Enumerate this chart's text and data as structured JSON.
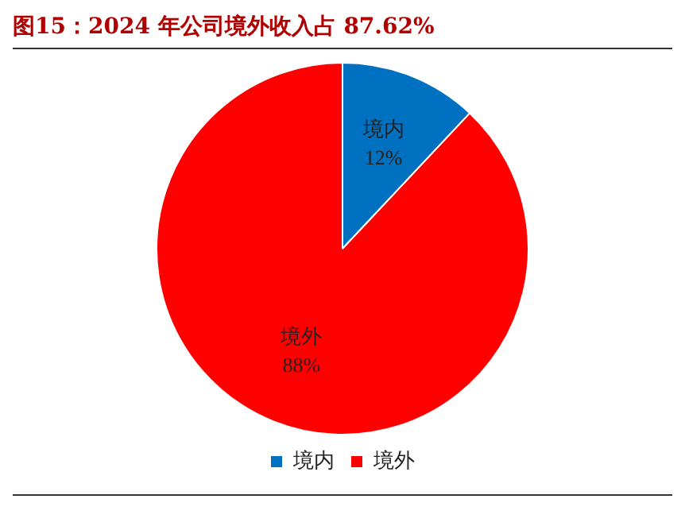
{
  "chart_data": {
    "type": "pie",
    "title": "图15：2024 年公司境外收入占 87.62%",
    "categories": [
      "境内",
      "境外"
    ],
    "values": [
      12,
      88
    ],
    "value_labels": [
      "12%",
      "88%"
    ],
    "colors": [
      "#0070c0",
      "#ff0000"
    ],
    "legend": "bottom"
  }
}
